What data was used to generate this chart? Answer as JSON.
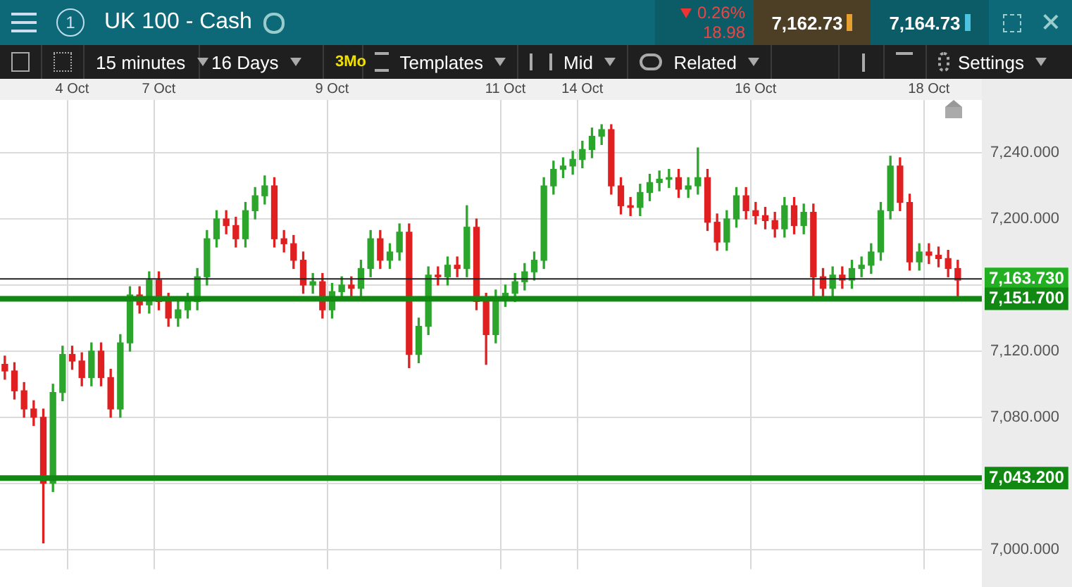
{
  "chart_data": {
    "type": "candlestick",
    "title": "UK 100 - Cash",
    "annotations": [
      "1",
      "0.26%",
      "18.98",
      "7,162.73",
      "7,164.73",
      "15 minutes",
      "16 Days",
      "3Mo",
      "Templates",
      "Mid",
      "Related",
      "Settings"
    ],
    "categories": [
      null,
      null,
      null,
      null,
      null,
      null,
      null,
      "4 Oct",
      null,
      null,
      null,
      null,
      null,
      null,
      null,
      null,
      "7 Oct",
      null,
      null,
      null,
      null,
      null,
      null,
      null,
      null,
      null,
      null,
      null,
      null,
      null,
      null,
      null,
      null,
      null,
      "9 Oct",
      null,
      null,
      null,
      null,
      null,
      null,
      null,
      null,
      null,
      null,
      null,
      null,
      null,
      null,
      null,
      null,
      null,
      "11 Oct",
      null,
      null,
      null,
      null,
      null,
      null,
      null,
      "14 Oct",
      null,
      null,
      null,
      null,
      null,
      null,
      null,
      null,
      null,
      null,
      null,
      null,
      null,
      null,
      null,
      null,
      null,
      "16 Oct",
      null,
      null,
      null,
      null,
      null,
      null,
      null,
      null,
      null,
      null,
      null,
      null,
      null,
      null,
      null,
      null,
      null,
      "18 Oct",
      null,
      null,
      null,
      null,
      null
    ],
    "ohlc": [
      [
        7112,
        7117,
        7103,
        7108
      ],
      [
        7108,
        7113,
        7091,
        7096
      ],
      [
        7096,
        7101,
        7080,
        7085
      ],
      [
        7085,
        7090,
        7075,
        7080
      ],
      [
        7080,
        7085,
        7004,
        7040
      ],
      [
        7040,
        7100,
        7035,
        7095
      ],
      [
        7095,
        7123,
        7090,
        7118
      ],
      [
        7118,
        7123,
        7109,
        7114
      ],
      [
        7114,
        7119,
        7099,
        7104
      ],
      [
        7104,
        7125,
        7099,
        7120
      ],
      [
        7120,
        7125,
        7099,
        7104
      ],
      [
        7104,
        7109,
        7080,
        7085
      ],
      [
        7085,
        7130,
        7080,
        7125
      ],
      [
        7125,
        7159,
        7120,
        7154
      ],
      [
        7154,
        7159,
        7143,
        7148
      ],
      [
        7148,
        7168,
        7143,
        7163
      ],
      [
        7163,
        7168,
        7145,
        7150
      ],
      [
        7150,
        7155,
        7135,
        7140
      ],
      [
        7140,
        7150,
        7135,
        7145
      ],
      [
        7145,
        7155,
        7140,
        7150
      ],
      [
        7150,
        7170,
        7145,
        7165
      ],
      [
        7165,
        7193,
        7160,
        7188
      ],
      [
        7188,
        7205,
        7183,
        7200
      ],
      [
        7200,
        7205,
        7191,
        7196
      ],
      [
        7196,
        7201,
        7183,
        7188
      ],
      [
        7188,
        7210,
        7183,
        7205
      ],
      [
        7205,
        7219,
        7200,
        7214
      ],
      [
        7214,
        7226,
        7209,
        7220
      ],
      [
        7220,
        7225,
        7183,
        7188
      ],
      [
        7188,
        7193,
        7180,
        7185
      ],
      [
        7185,
        7190,
        7170,
        7175
      ],
      [
        7175,
        7180,
        7155,
        7160
      ],
      [
        7160,
        7167,
        7155,
        7162
      ],
      [
        7162,
        7167,
        7140,
        7145
      ],
      [
        7145,
        7161,
        7140,
        7156
      ],
      [
        7156,
        7165,
        7151,
        7160
      ],
      [
        7160,
        7165,
        7153,
        7158
      ],
      [
        7158,
        7175,
        7153,
        7170
      ],
      [
        7170,
        7193,
        7165,
        7188
      ],
      [
        7188,
        7193,
        7170,
        7175
      ],
      [
        7175,
        7185,
        7170,
        7180
      ],
      [
        7180,
        7197,
        7175,
        7192
      ],
      [
        7192,
        7197,
        7110,
        7118
      ],
      [
        7118,
        7140,
        7113,
        7135
      ],
      [
        7135,
        7171,
        7130,
        7166
      ],
      [
        7166,
        7171,
        7160,
        7165
      ],
      [
        7165,
        7177,
        7160,
        7172
      ],
      [
        7172,
        7177,
        7165,
        7170
      ],
      [
        7170,
        7208,
        7165,
        7195
      ],
      [
        7195,
        7200,
        7145,
        7150
      ],
      [
        7150,
        7155,
        7112,
        7130
      ],
      [
        7130,
        7157,
        7125,
        7152
      ],
      [
        7152,
        7160,
        7147,
        7155
      ],
      [
        7155,
        7167,
        7150,
        7162
      ],
      [
        7162,
        7173,
        7157,
        7168
      ],
      [
        7168,
        7180,
        7163,
        7175
      ],
      [
        7175,
        7225,
        7170,
        7220
      ],
      [
        7220,
        7235,
        7215,
        7230
      ],
      [
        7230,
        7237,
        7225,
        7232
      ],
      [
        7232,
        7241,
        7227,
        7236
      ],
      [
        7236,
        7247,
        7231,
        7242
      ],
      [
        7242,
        7255,
        7237,
        7250
      ],
      [
        7250,
        7257,
        7245,
        7254
      ],
      [
        7254,
        7257,
        7215,
        7220
      ],
      [
        7220,
        7225,
        7203,
        7208
      ],
      [
        7208,
        7213,
        7202,
        7207
      ],
      [
        7207,
        7221,
        7202,
        7216
      ],
      [
        7216,
        7227,
        7211,
        7222
      ],
      [
        7222,
        7229,
        7217,
        7224
      ],
      [
        7224,
        7230,
        7219,
        7225
      ],
      [
        7225,
        7230,
        7213,
        7218
      ],
      [
        7218,
        7225,
        7213,
        7220
      ],
      [
        7220,
        7243,
        7215,
        7225
      ],
      [
        7225,
        7230,
        7193,
        7198
      ],
      [
        7198,
        7203,
        7181,
        7186
      ],
      [
        7186,
        7205,
        7181,
        7200
      ],
      [
        7200,
        7219,
        7195,
        7214
      ],
      [
        7214,
        7219,
        7200,
        7205
      ],
      [
        7205,
        7210,
        7197,
        7202
      ],
      [
        7202,
        7207,
        7194,
        7199
      ],
      [
        7199,
        7204,
        7189,
        7194
      ],
      [
        7194,
        7213,
        7189,
        7208
      ],
      [
        7208,
        7213,
        7191,
        7196
      ],
      [
        7196,
        7209,
        7191,
        7204
      ],
      [
        7204,
        7209,
        7152,
        7165
      ],
      [
        7165,
        7170,
        7153,
        7158
      ],
      [
        7158,
        7171,
        7153,
        7166
      ],
      [
        7166,
        7171,
        7158,
        7163
      ],
      [
        7163,
        7175,
        7158,
        7170
      ],
      [
        7170,
        7177,
        7165,
        7172
      ],
      [
        7172,
        7185,
        7167,
        7180
      ],
      [
        7180,
        7210,
        7175,
        7205
      ],
      [
        7205,
        7238,
        7200,
        7232
      ],
      [
        7232,
        7237,
        7205,
        7210
      ],
      [
        7210,
        7215,
        7169,
        7174
      ],
      [
        7174,
        7185,
        7169,
        7180
      ],
      [
        7180,
        7185,
        7173,
        7178
      ],
      [
        7178,
        7183,
        7171,
        7176
      ],
      [
        7176,
        7181,
        7165,
        7170
      ],
      [
        7170,
        7175,
        7153,
        7163
      ],
      null,
      null
    ],
    "colors": [
      "#e02020",
      "#e02020",
      "#e02020",
      "#e02020",
      "#e02020",
      "#2ca52c",
      "#2ca52c",
      "#e02020",
      "#e02020",
      "#2ca52c",
      "#e02020",
      "#e02020",
      "#2ca52c",
      "#2ca52c",
      "#e02020",
      "#2ca52c",
      "#e02020",
      "#e02020",
      "#2ca52c",
      "#2ca52c",
      "#2ca52c",
      "#2ca52c",
      "#2ca52c",
      "#e02020",
      "#e02020",
      "#2ca52c",
      "#2ca52c",
      "#2ca52c",
      "#e02020",
      "#e02020",
      "#e02020",
      "#e02020",
      "#2ca52c",
      "#e02020",
      "#2ca52c",
      "#2ca52c",
      "#e02020",
      "#2ca52c",
      "#2ca52c",
      "#e02020",
      "#2ca52c",
      "#2ca52c",
      "#e02020",
      "#2ca52c",
      "#2ca52c",
      "#e02020",
      "#2ca52c",
      "#e02020",
      "#2ca52c",
      "#e02020",
      "#e02020",
      "#2ca52c",
      "#2ca52c",
      "#2ca52c",
      "#2ca52c",
      "#2ca52c",
      "#2ca52c",
      "#2ca52c",
      "#2ca52c",
      "#2ca52c",
      "#2ca52c",
      "#2ca52c",
      "#2ca52c",
      "#e02020",
      "#e02020",
      "#e02020",
      "#2ca52c",
      "#2ca52c",
      "#2ca52c",
      "#2ca52c",
      "#e02020",
      "#2ca52c",
      "#2ca52c",
      "#e02020",
      "#e02020",
      "#2ca52c",
      "#2ca52c",
      "#e02020",
      "#e02020",
      "#e02020",
      "#e02020",
      "#2ca52c",
      "#e02020",
      "#2ca52c",
      "#e02020",
      "#e02020",
      "#2ca52c",
      "#e02020",
      "#2ca52c",
      "#2ca52c",
      "#2ca52c",
      "#2ca52c",
      "#2ca52c",
      "#e02020",
      "#e02020",
      "#2ca52c",
      "#e02020",
      "#e02020",
      "#e02020",
      "#e02020",
      null,
      null
    ],
    "ylim": [
      6988,
      7272
    ],
    "yticks": [
      {
        "value": 7000,
        "label": "7,000.000"
      },
      {
        "value": 7040,
        "label": null
      },
      {
        "value": 7080,
        "label": "7,080.000"
      },
      {
        "value": 7120,
        "label": "7,120.000"
      },
      {
        "value": 7160,
        "label": null
      },
      {
        "value": 7200,
        "label": "7,200.000"
      },
      {
        "value": 7240,
        "label": "7,240.000"
      }
    ],
    "ref_lines": [
      {
        "axis": "y",
        "value": 7163.73,
        "label": "7,163.730",
        "color": "#222222"
      },
      {
        "axis": "y",
        "value": 7151.7,
        "label": "7,151.700",
        "color": "#118811"
      },
      {
        "axis": "y",
        "value": 7043.2,
        "label": "7,043.200",
        "color": "#118811"
      }
    ],
    "grid": true,
    "legend": false
  }
}
